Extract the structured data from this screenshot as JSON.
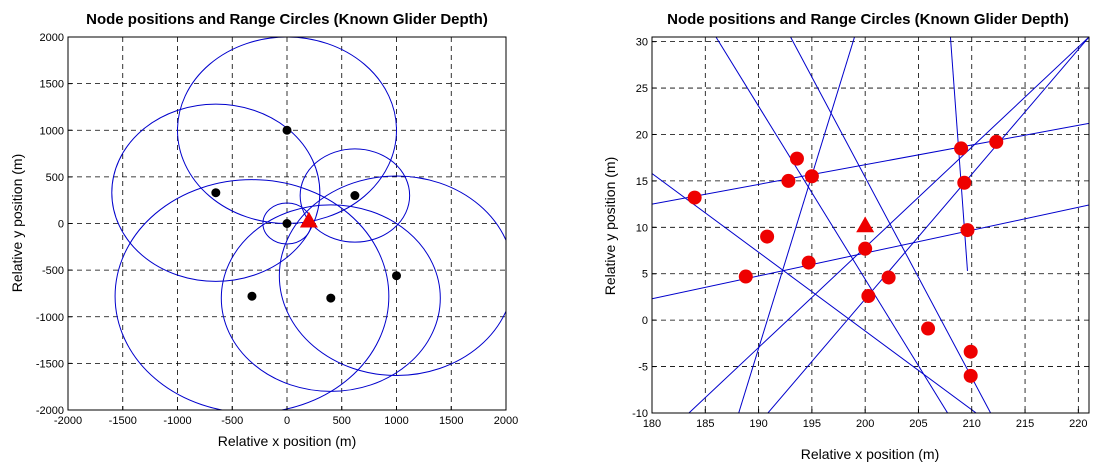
{
  "chart_data": [
    {
      "type": "scatter",
      "title": "Node positions and Range Circles (Known Glider Depth)",
      "xlabel": "Relative x position (m)",
      "ylabel": "Relative y position (m)",
      "xlim": [
        -2000,
        2000
      ],
      "ylim": [
        -2000,
        2000
      ],
      "xticks": [
        -2000,
        -1500,
        -1000,
        -500,
        0,
        500,
        1000,
        1500,
        2000
      ],
      "yticks": [
        -2000,
        -1500,
        -1000,
        -500,
        0,
        500,
        1000,
        1500,
        2000
      ],
      "grid": true,
      "colors": {
        "circles": "#0000cc",
        "nodes": "#000000",
        "glider": "#ee0000"
      },
      "nodes": [
        {
          "x": 0,
          "y": 1000
        },
        {
          "x": -650,
          "y": 330
        },
        {
          "x": 620,
          "y": 300
        },
        {
          "x": 0,
          "y": 0
        },
        {
          "x": 1000,
          "y": -560
        },
        {
          "x": -320,
          "y": -780
        },
        {
          "x": 400,
          "y": -800
        }
      ],
      "range_circles": [
        {
          "cx": 0,
          "cy": 1000,
          "r": 1000
        },
        {
          "cx": -650,
          "cy": 330,
          "r": 950
        },
        {
          "cx": 620,
          "cy": 300,
          "r": 500
        },
        {
          "cx": 0,
          "cy": 0,
          "r": 220
        },
        {
          "cx": 1000,
          "cy": -560,
          "r": 1070
        },
        {
          "cx": -320,
          "cy": -780,
          "r": 1250
        },
        {
          "cx": 400,
          "cy": -800,
          "r": 1000
        }
      ],
      "glider": {
        "x": 200,
        "y": 30,
        "marker": "triangle"
      }
    },
    {
      "type": "scatter",
      "title": "Node positions and Range Circles (Known Glider Depth)",
      "xlabel": "Relative x position (m)",
      "ylabel": "Relative y position (m)",
      "xlim": [
        180,
        221
      ],
      "ylim": [
        -10,
        30.5
      ],
      "xticks": [
        180,
        185,
        190,
        195,
        200,
        205,
        210,
        215,
        220
      ],
      "yticks": [
        -10,
        -5,
        0,
        5,
        10,
        15,
        20,
        25,
        30
      ],
      "grid": true,
      "colors": {
        "lines": "#0000cc",
        "intersections": "#ee0000",
        "glider": "#ee0000"
      },
      "range_arcs": [
        {
          "x": [
            180,
            221
          ],
          "y": [
            12.5,
            21.2
          ]
        },
        {
          "x": [
            180,
            221
          ],
          "y": [
            2.3,
            12.4
          ]
        },
        {
          "x": [
            180,
            211
          ],
          "y": [
            15.8,
            -10.5
          ]
        },
        {
          "x": [
            183,
            221
          ],
          "y": [
            -10.5,
            30.5
          ]
        },
        {
          "x": [
            190.5,
            221
          ],
          "y": [
            -10.5,
            30.5
          ]
        },
        {
          "x": [
            186,
            208
          ],
          "y": [
            30.5,
            -10.5
          ]
        },
        {
          "x": [
            193,
            212
          ],
          "y": [
            30.5,
            -10.5
          ]
        },
        {
          "x": [
            188,
            199
          ],
          "y": [
            -10.5,
            30.5
          ]
        },
        {
          "x": [
            208,
            209.6
          ],
          "y": [
            30.5,
            5.3
          ]
        }
      ],
      "intersections": [
        {
          "x": 184,
          "y": 13.2
        },
        {
          "x": 193.6,
          "y": 17.4
        },
        {
          "x": 192.8,
          "y": 15
        },
        {
          "x": 195,
          "y": 15.5
        },
        {
          "x": 209,
          "y": 18.5
        },
        {
          "x": 212.3,
          "y": 19.2
        },
        {
          "x": 209.3,
          "y": 14.8
        },
        {
          "x": 209.6,
          "y": 9.7
        },
        {
          "x": 190.8,
          "y": 9
        },
        {
          "x": 200,
          "y": 7.7
        },
        {
          "x": 188.8,
          "y": 4.7
        },
        {
          "x": 194.7,
          "y": 6.2
        },
        {
          "x": 202.2,
          "y": 4.6
        },
        {
          "x": 200.3,
          "y": 2.6
        },
        {
          "x": 205.9,
          "y": -0.9
        },
        {
          "x": 209.9,
          "y": -3.4
        },
        {
          "x": 209.9,
          "y": -6
        }
      ],
      "glider": {
        "x": 200,
        "y": 10.2,
        "marker": "triangle"
      }
    }
  ]
}
